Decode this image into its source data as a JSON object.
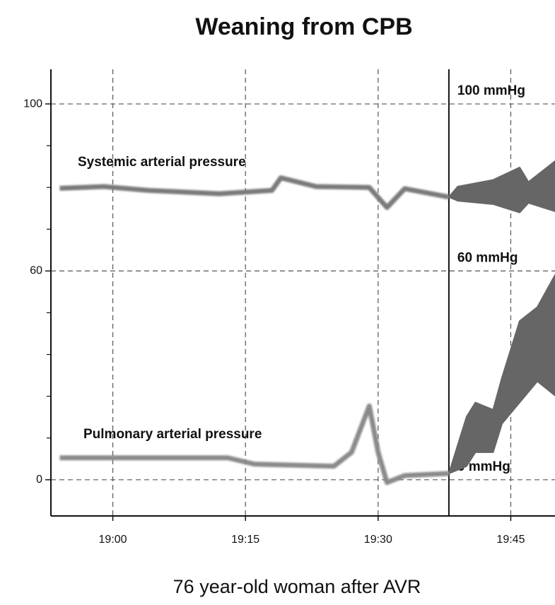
{
  "chart_data": {
    "type": "line",
    "title": "Weaning from CPB",
    "subtitle": "76 year-old woman after AVR",
    "xlim": [
      "18:53",
      "19:50"
    ],
    "xticks": [
      "19:00",
      "19:15",
      "19:30",
      "19:45"
    ],
    "ylim": [
      -10.4,
      108.3
    ],
    "yscale": "tick-spaced",
    "yticks": [
      0,
      60,
      100
    ],
    "yminor_ticks": [
      12,
      24,
      36,
      48,
      70,
      80,
      90
    ],
    "grid": true,
    "marker_x": "19:38",
    "annotations": [
      {
        "text": "100 mmHg",
        "y": 100
      },
      {
        "text": "60 mmHg",
        "y": 60
      },
      {
        "text": "0 mmHg",
        "y": 0
      }
    ],
    "series": [
      {
        "name": "Systemic arterial pressure",
        "color": "#7a7a7a",
        "x": [
          "18:54",
          "18:59",
          "19:04",
          "19:12",
          "19:18",
          "19:19",
          "19:23",
          "19:29",
          "19:31",
          "19:33",
          "19:38"
        ],
        "values": [
          79.8,
          80.2,
          79.3,
          78.5,
          79.3,
          82.3,
          80.2,
          80,
          75.2,
          79.7,
          77.7
        ],
        "band": {
          "x": [
            "19:38",
            "19:39",
            "19:43",
            "19:46",
            "19:47",
            "19:50"
          ],
          "upper": [
            77.7,
            80.2,
            81.8,
            84.8,
            81.3,
            86.3
          ],
          "lower": [
            77.7,
            76.8,
            76,
            74,
            76.3,
            74.3
          ]
        }
      },
      {
        "name": "Pulmonary arterial pressure",
        "color": "#8a8a8a",
        "x": [
          "18:54",
          "19:13",
          "19:16",
          "19:25",
          "19:27",
          "19:29",
          "19:30",
          "19:31",
          "19:33",
          "19:38"
        ],
        "values": [
          6.3,
          6.3,
          4.5,
          3.9,
          7.9,
          21.2,
          7.9,
          -0.8,
          1.2,
          1.8
        ],
        "band": {
          "x": [
            "19:38",
            "19:40",
            "19:41",
            "19:43",
            "19:44",
            "19:46",
            "19:48",
            "19:50"
          ],
          "upper": [
            1.8,
            18.1,
            22.2,
            20.1,
            29.3,
            45.6,
            49.6,
            58.8
          ],
          "lower": [
            1.8,
            3.9,
            7.9,
            7.9,
            16.1,
            22.2,
            28.3,
            24.2
          ]
        }
      }
    ]
  }
}
